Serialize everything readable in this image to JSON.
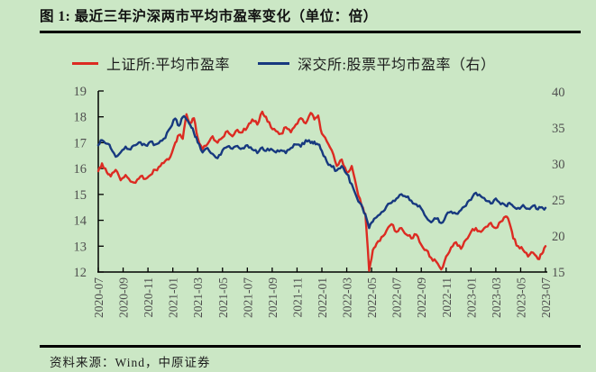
{
  "title": "图 1:  最近三年沪深两市平均市盈率变化（单位：倍）",
  "source": "资料来源：Wind，中原证券",
  "colors": {
    "background": "#cbe7c5",
    "red": "#dc2b22",
    "blue": "#17397f",
    "rule": "#000000",
    "axis_line": "#000000",
    "axis_text": "#4f4f4f"
  },
  "legend": [
    {
      "label": "上证所:平均市盈率",
      "color_key": "red"
    },
    {
      "label": "深交所:股票平均市盈率（右）",
      "color_key": "blue"
    }
  ],
  "chart_data": {
    "type": "line",
    "title": "图 1:  最近三年沪深两市平均市盈率变化（单位：倍）",
    "x_unit": "months since 2020-07",
    "legend_position": "top",
    "grid": false,
    "x_ticks": {
      "positions": [
        0,
        2,
        4,
        6,
        8,
        10,
        12,
        14,
        16,
        18,
        20,
        22,
        24,
        26,
        28,
        30,
        32,
        34,
        36
      ],
      "labels": [
        "2020-07",
        "2020-09",
        "2020-11",
        "2021-01",
        "2021-03",
        "2021-05",
        "2021-07",
        "2021-09",
        "2021-11",
        "2022-01",
        "2022-03",
        "2022-05",
        "2022-07",
        "2022-09",
        "2022-11",
        "2023-01",
        "2023-03",
        "2023-05",
        "2023-07"
      ]
    },
    "left_axis": {
      "min": 12,
      "max": 19,
      "ticks": [
        19,
        18,
        17,
        16,
        15,
        14,
        13,
        12
      ]
    },
    "right_axis": {
      "min": 15,
      "max": 40,
      "ticks": [
        40,
        35,
        30,
        25,
        20,
        15
      ]
    },
    "x": [
      0,
      0.3,
      0.7,
      1,
      1.4,
      1.8,
      2.2,
      2.6,
      3,
      3.4,
      3.8,
      4.2,
      4.6,
      5,
      5.4,
      5.8,
      6.2,
      6.5,
      6.8,
      7.1,
      7.4,
      7.7,
      8,
      8.4,
      8.8,
      9.2,
      9.6,
      10,
      10.4,
      10.8,
      11.2,
      11.6,
      12,
      12.4,
      12.8,
      13.2,
      13.5,
      13.9,
      14.3,
      14.7,
      15.1,
      15.5,
      15.9,
      16.3,
      16.7,
      17.1,
      17.4,
      17.7,
      18,
      18.4,
      18.8,
      19.2,
      19.6,
      20,
      20.4,
      20.8,
      21.2,
      21.5,
      21.8,
      22.1,
      22.4,
      22.8,
      23.2,
      23.6,
      24,
      24.4,
      24.8,
      25.2,
      25.6,
      26,
      26.4,
      26.8,
      27.2,
      27.6,
      28,
      28.4,
      28.8,
      29.2,
      29.6,
      30,
      30.4,
      30.8,
      31.2,
      31.6,
      32,
      32.4,
      32.8,
      33.1,
      33.4,
      33.8,
      34.2,
      34.6,
      35,
      35.4,
      35.7,
      36
    ],
    "series": [
      {
        "name": "上证所:平均市盈率",
        "axis": "left",
        "color": "#dc2b22",
        "values": [
          15.9,
          16.2,
          15.85,
          15.7,
          15.95,
          15.55,
          15.75,
          15.5,
          15.45,
          15.7,
          15.6,
          15.75,
          15.95,
          16.1,
          16.3,
          16.45,
          17.0,
          17.3,
          17.15,
          18.1,
          17.75,
          17.95,
          17.2,
          16.75,
          16.95,
          17.25,
          17.0,
          17.2,
          17.45,
          17.25,
          17.5,
          17.4,
          17.6,
          17.9,
          17.7,
          18.2,
          18.0,
          17.6,
          17.45,
          17.35,
          17.6,
          17.4,
          17.7,
          17.95,
          17.75,
          18.15,
          17.9,
          18.05,
          17.35,
          17.05,
          16.7,
          16.1,
          16.35,
          15.85,
          16.1,
          15.25,
          14.55,
          14.25,
          12.05,
          12.85,
          13.1,
          13.35,
          13.6,
          13.85,
          13.55,
          13.7,
          13.45,
          13.3,
          13.45,
          13.05,
          12.85,
          12.55,
          12.4,
          12.1,
          12.6,
          12.95,
          13.15,
          12.9,
          13.25,
          13.55,
          13.7,
          13.55,
          13.75,
          13.9,
          13.7,
          13.95,
          14.15,
          13.9,
          13.3,
          13.0,
          12.85,
          12.6,
          12.75,
          12.5,
          12.7,
          13.0
        ]
      },
      {
        "name": "深交所:股票平均市盈率（右）",
        "axis": "right",
        "color": "#17397f",
        "values": [
          32.6,
          33.3,
          32.8,
          32.2,
          31.0,
          31.6,
          32.4,
          32.0,
          32.6,
          33.0,
          32.6,
          33.1,
          32.7,
          33.2,
          33.6,
          35.0,
          36.3,
          35.3,
          36.5,
          36.2,
          35.4,
          34.3,
          33.0,
          31.6,
          32.2,
          31.4,
          30.8,
          31.9,
          32.4,
          32.1,
          32.5,
          32.2,
          32.6,
          32.0,
          31.5,
          32.3,
          31.8,
          32.1,
          31.6,
          31.9,
          31.5,
          32.2,
          32.7,
          32.4,
          33.3,
          32.9,
          33.1,
          32.7,
          31.8,
          30.3,
          29.6,
          29.1,
          29.7,
          28.6,
          27.2,
          25.4,
          24.3,
          23.0,
          21.1,
          22.0,
          22.6,
          23.3,
          24.1,
          24.6,
          25.2,
          25.8,
          25.4,
          24.9,
          24.4,
          23.8,
          22.6,
          21.9,
          22.4,
          21.8,
          22.9,
          23.4,
          23.1,
          23.6,
          24.2,
          25.0,
          26.0,
          25.5,
          24.9,
          24.5,
          25.2,
          24.4,
          24.2,
          24.6,
          24.1,
          23.9,
          24.3,
          23.8,
          24.2,
          23.7,
          24.0,
          23.9
        ]
      }
    ]
  }
}
